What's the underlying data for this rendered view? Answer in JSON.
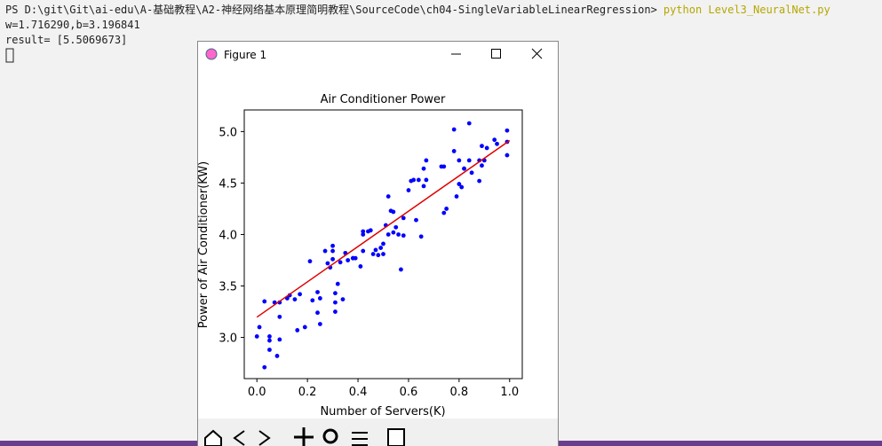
{
  "terminal": {
    "prompt": "PS D:\\git\\Git\\ai-edu\\A-基础教程\\A2-神经网络基本原理简明教程\\SourceCode\\ch04-SingleVariableLinearRegression>",
    "command": "python Level3_NeuralNet.py",
    "lines": [
      "w=1.716290,b=3.196841",
      "result= [5.5069673]"
    ]
  },
  "window": {
    "title": "Figure 1"
  },
  "chart_data": {
    "type": "scatter",
    "title": "Air Conditioner Power",
    "x_label": "Number of Servers(K)",
    "y_label": "Power of Air Conditioner(KW)",
    "xlim": [
      -0.05,
      1.05
    ],
    "ylim": [
      2.6,
      5.21
    ],
    "xticks": [
      {
        "value": 0,
        "label": "0.0"
      },
      0.2,
      0.4,
      0.6,
      0.8,
      {
        "value": 1,
        "label": "1.0"
      }
    ],
    "yticks": [
      {
        "value": 3,
        "label": "3.0"
      },
      3.5,
      {
        "value": 4,
        "label": "4.0"
      },
      4.5,
      {
        "value": 5,
        "label": "5.0"
      }
    ],
    "series": [
      {
        "type": "scatter",
        "color": "#0000ff",
        "x": [
          0.0,
          0.01,
          0.03,
          0.03,
          0.05,
          0.05,
          0.05,
          0.07,
          0.08,
          0.09,
          0.09,
          0.09,
          0.12,
          0.13,
          0.15,
          0.17,
          0.16,
          0.19,
          0.21,
          0.22,
          0.24,
          0.24,
          0.25,
          0.25,
          0.27,
          0.28,
          0.29,
          0.3,
          0.3,
          0.3,
          0.31,
          0.31,
          0.31,
          0.32,
          0.33,
          0.34,
          0.35,
          0.36,
          0.38,
          0.38,
          0.39,
          0.41,
          0.42,
          0.42,
          0.42,
          0.44,
          0.45,
          0.46,
          0.47,
          0.48,
          0.49,
          0.5,
          0.5,
          0.51,
          0.52,
          0.52,
          0.53,
          0.54,
          0.54,
          0.55,
          0.56,
          0.57,
          0.58,
          0.58,
          0.6,
          0.61,
          0.62,
          0.63,
          0.64,
          0.65,
          0.66,
          0.66,
          0.67,
          0.67,
          0.73,
          0.74,
          0.74,
          0.75,
          0.78,
          0.78,
          0.79,
          0.8,
          0.8,
          0.81,
          0.82,
          0.82,
          0.84,
          0.84,
          0.85,
          0.88,
          0.88,
          0.89,
          0.89,
          0.9,
          0.91,
          0.94,
          0.95,
          0.99,
          0.99,
          0.99
        ],
        "y": [
          3.01,
          3.1,
          3.35,
          2.71,
          2.88,
          3.01,
          2.97,
          3.34,
          2.82,
          3.34,
          2.98,
          3.2,
          3.38,
          3.41,
          3.37,
          3.42,
          3.07,
          3.1,
          3.74,
          3.36,
          3.44,
          3.24,
          3.38,
          3.13,
          3.84,
          3.72,
          3.68,
          3.89,
          3.84,
          3.76,
          3.34,
          3.43,
          3.25,
          3.52,
          3.73,
          3.37,
          3.82,
          3.75,
          3.77,
          3.77,
          3.77,
          3.69,
          4.03,
          4.0,
          3.84,
          4.03,
          4.04,
          3.81,
          3.85,
          3.8,
          3.87,
          3.81,
          3.91,
          4.09,
          4.0,
          4.37,
          4.23,
          4.22,
          4.02,
          4.07,
          4.0,
          3.66,
          4.16,
          3.99,
          4.43,
          4.52,
          4.53,
          4.14,
          4.53,
          3.98,
          4.64,
          4.47,
          4.72,
          4.53,
          4.66,
          4.66,
          4.21,
          4.25,
          5.02,
          4.81,
          4.37,
          4.49,
          4.72,
          4.46,
          4.64,
          4.64,
          5.08,
          4.72,
          4.6,
          4.72,
          4.52,
          4.67,
          4.86,
          4.72,
          4.84,
          4.92,
          4.88,
          4.9,
          5.01,
          4.77
        ]
      },
      {
        "type": "line",
        "color": "#e00000",
        "x": [
          0,
          1
        ],
        "y": [
          3.197,
          4.913
        ]
      }
    ]
  }
}
